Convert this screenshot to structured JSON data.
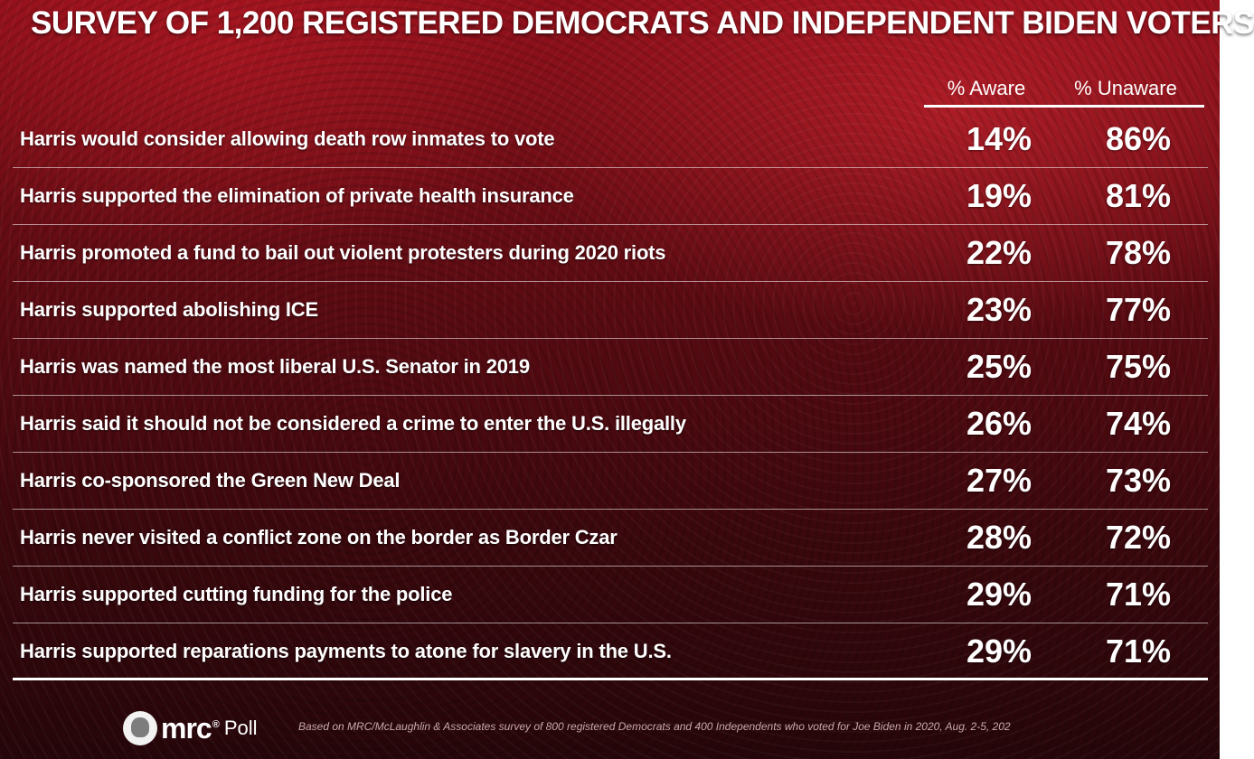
{
  "headline": "SURVEY OF 1,200 REGISTERED DEMOCRATS AND INDEPENDENT BIDEN VOTERS",
  "chart_data": {
    "type": "table",
    "columns": [
      "% Aware",
      "% Unaware"
    ],
    "rows": [
      {
        "statement": "Harris would consider allowing death row inmates to vote",
        "aware": "14%",
        "unaware": "86%"
      },
      {
        "statement": "Harris supported the elimination of private health insurance",
        "aware": "19%",
        "unaware": "81%"
      },
      {
        "statement": "Harris promoted a fund to bail out violent protesters during 2020 riots",
        "aware": "22%",
        "unaware": "78%"
      },
      {
        "statement": "Harris supported abolishing ICE",
        "aware": "23%",
        "unaware": "77%"
      },
      {
        "statement": "Harris was named the most liberal U.S. Senator in 2019",
        "aware": "25%",
        "unaware": "75%"
      },
      {
        "statement": "Harris said it should not be considered a crime to enter the U.S. illegally",
        "aware": "26%",
        "unaware": "74%"
      },
      {
        "statement": "Harris co-sponsored the Green New Deal",
        "aware": "27%",
        "unaware": "73%"
      },
      {
        "statement": "Harris never visited a conflict zone on the border as Border Czar",
        "aware": "28%",
        "unaware": "72%"
      },
      {
        "statement": "Harris supported cutting funding for the police",
        "aware": "29%",
        "unaware": "71%"
      },
      {
        "statement": "Harris supported reparations payments to atone for slavery in the U.S.",
        "aware": "29%",
        "unaware": "71%"
      }
    ]
  },
  "footer": {
    "logo_text": "mrc",
    "logo_mark": "®",
    "logo_suffix": "Poll",
    "source": "Based on MRC/McLaughlin & Associates survey of 800 registered Democrats and 400 Independents who voted for Joe Biden in 2020, Aug. 2-5, 202"
  },
  "icons": {
    "logo": "mrc-lion-logo-icon"
  },
  "colors": {
    "background": "#7a0e17",
    "text": "#ffffff",
    "source_text": "#c9a9ab"
  }
}
